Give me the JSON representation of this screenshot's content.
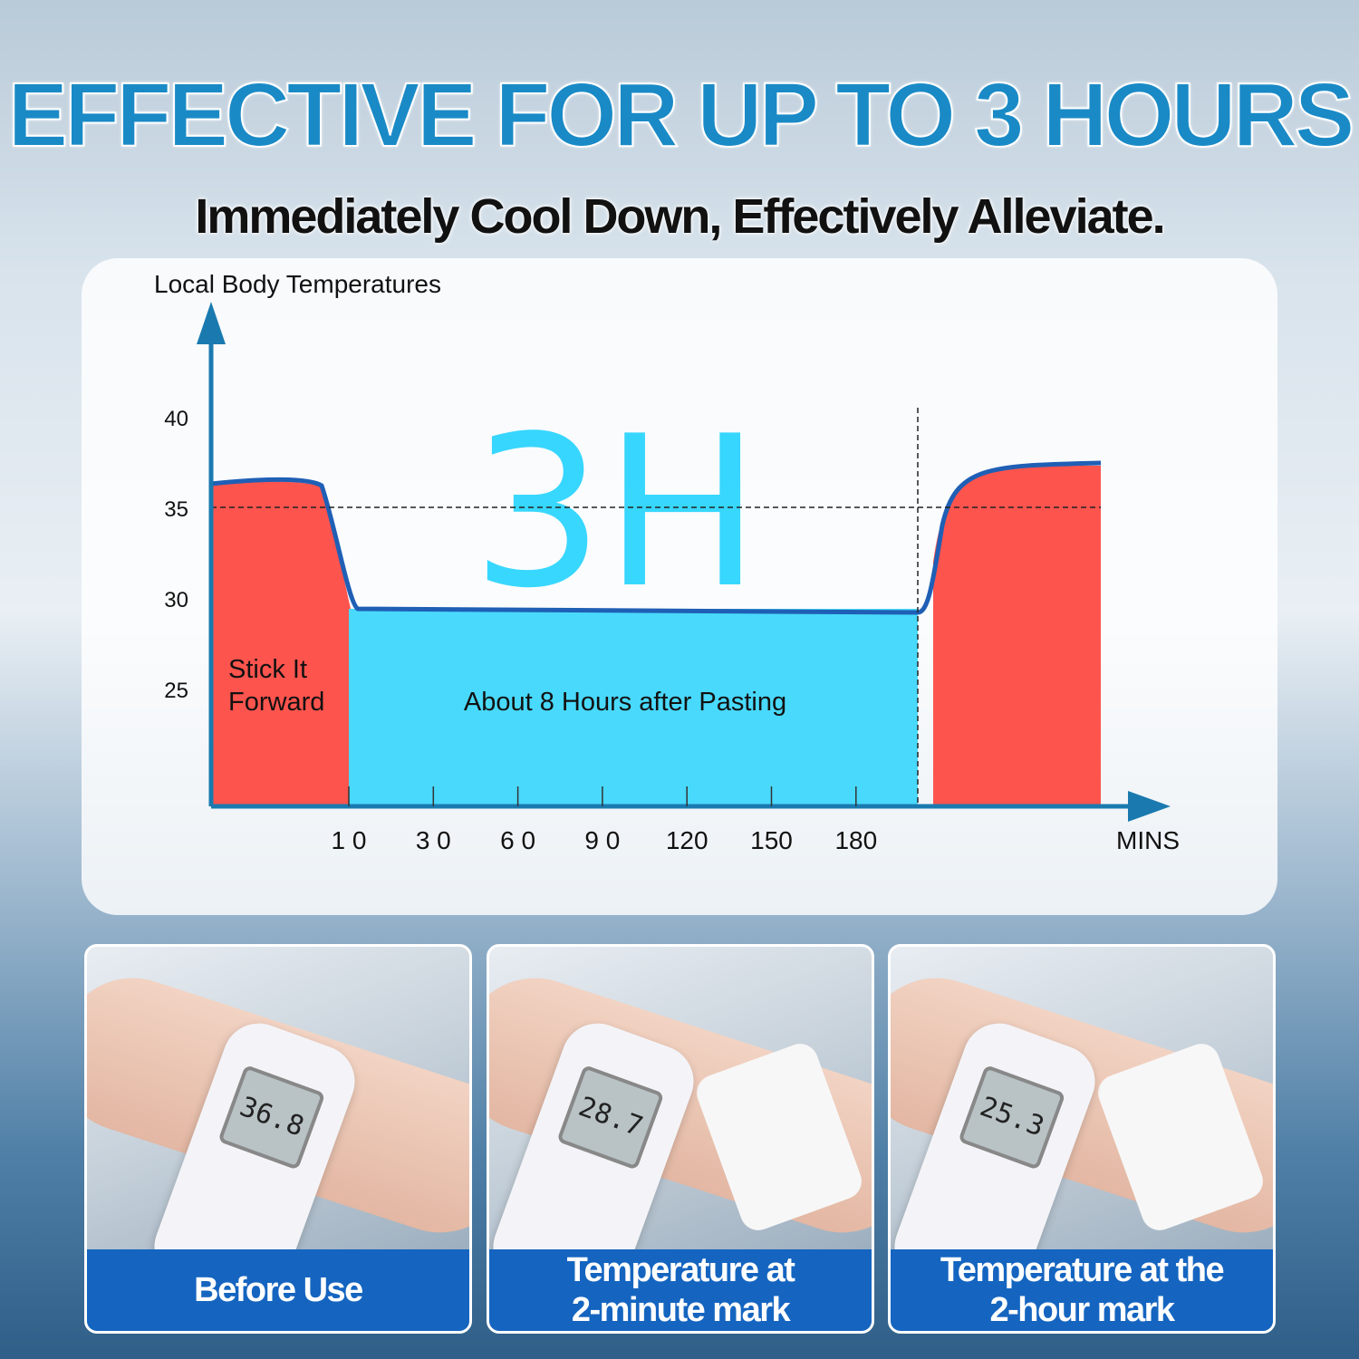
{
  "header": {
    "title": "EFFECTIVE FOR UP TO 3 HOURS",
    "subtitle": "Immediately Cool Down, Effectively Alleviate."
  },
  "chart_data": {
    "type": "area",
    "ylabel": "Local Body Temperatures",
    "xlabel": "MINS",
    "yticks": [
      40,
      35,
      30,
      25
    ],
    "xticks": [
      "1 0",
      "3 0",
      "6 0",
      "9 0",
      "120",
      "150",
      "180"
    ],
    "reference_line_y": 35,
    "big_label": "3H",
    "curve": [
      {
        "x": "start",
        "y": 36.3
      },
      {
        "x": "before 10",
        "y": 36.5
      },
      {
        "x": "10",
        "y": 29.4
      },
      {
        "x": "180",
        "y": 29.2
      },
      {
        "x": "after 180",
        "y": 29.2
      },
      {
        "x": "end",
        "y": 37.3
      }
    ],
    "regions": [
      {
        "label": "Stick It\nForward",
        "color": "#fd544e"
      },
      {
        "label": "About 8 Hours after Pasting",
        "color": "#49d9fd"
      },
      {
        "label": "",
        "color": "#fd544e"
      }
    ],
    "line_color": "#1f5fb5",
    "axis_color": "#1a7ab0"
  },
  "photos": [
    {
      "reading": "36.8",
      "caption": "Before Use"
    },
    {
      "reading": "28.7",
      "caption": "Temperature at\n2-minute mark"
    },
    {
      "reading": "25.3",
      "caption": "Temperature at the\n2-hour mark"
    }
  ]
}
